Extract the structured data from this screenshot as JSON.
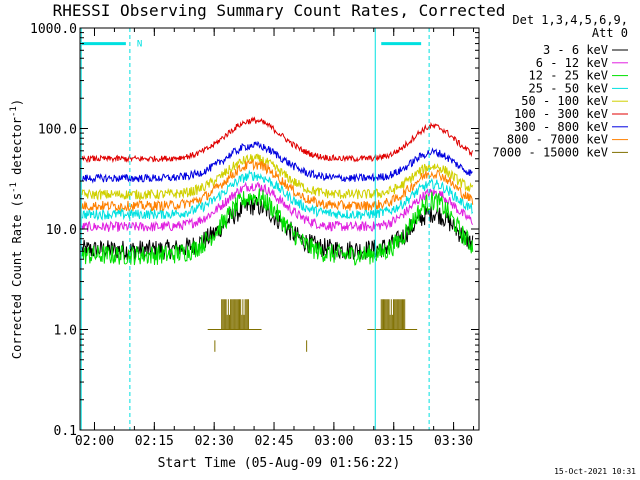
{
  "chart_data": {
    "type": "line",
    "title": "RHESSI Observing Summary Count Rates, Corrected",
    "xlabel": "Start Time (05-Aug-09 01:56:22)",
    "ylabel_main": "Corrected Count Rate (s",
    "ylabel_sup1": "-1",
    "ylabel_mid": " detector",
    "ylabel_sup2": "-1",
    "ylabel_end": ")",
    "y_scale": "log",
    "ylim": [
      0.1,
      1000
    ],
    "xlim_minutes": [
      0,
      100
    ],
    "x_ticks": [
      {
        "m": 3.63,
        "label": "02:00"
      },
      {
        "m": 18.63,
        "label": "02:15"
      },
      {
        "m": 33.63,
        "label": "02:30"
      },
      {
        "m": 48.63,
        "label": "02:45"
      },
      {
        "m": 63.63,
        "label": "03:00"
      },
      {
        "m": 78.63,
        "label": "03:15"
      },
      {
        "m": 93.63,
        "label": "03:30"
      }
    ],
    "y_ticks": [
      {
        "v": 1000,
        "label": "1000.0"
      },
      {
        "v": 100,
        "label": "100.0"
      },
      {
        "v": 10,
        "label": "10.0"
      },
      {
        "v": 1,
        "label": "1.0"
      },
      {
        "v": 0.1,
        "label": "0.1"
      }
    ],
    "legend_header": [
      "Det 1,3,4,5,6,9,",
      "Att 0"
    ],
    "footer_date": "15-Oct-2021 10:31",
    "night_marker": "N",
    "series": [
      {
        "name": "3 - 6 keV",
        "color": "#000000",
        "base": 6.2,
        "peak1": 17,
        "peak2": 14.5,
        "noise": 0.1
      },
      {
        "name": "6 - 12 keV",
        "color": "#e020e0",
        "base": 10.5,
        "peak1": 27,
        "peak2": 23,
        "noise": 0.05
      },
      {
        "name": "12 - 25 keV",
        "color": "#00e000",
        "base": 5.5,
        "peak1": 21,
        "peak2": 19,
        "noise": 0.1
      },
      {
        "name": "25 - 50 keV",
        "color": "#00e0e0",
        "base": 14,
        "peak1": 34,
        "peak2": 28,
        "noise": 0.05
      },
      {
        "name": "50 - 100 keV",
        "color": "#d0d000",
        "base": 22,
        "peak1": 50,
        "peak2": 42,
        "noise": 0.05
      },
      {
        "name": "100 - 300 keV",
        "color": "#e00000",
        "base": 50,
        "peak1": 120,
        "peak2": 105,
        "noise": 0.03
      },
      {
        "name": "300 - 800 keV",
        "color": "#0000e0",
        "base": 32,
        "peak1": 68,
        "peak2": 58,
        "noise": 0.04
      },
      {
        "name": "800 - 7000 keV",
        "color": "#ff8000",
        "base": 17,
        "peak1": 44,
        "peak2": 36,
        "noise": 0.05
      },
      {
        "name": "7000 - 15000 keV",
        "color": "#807000",
        "base": 1.0,
        "peak1": 1.0,
        "peak2": 1.0,
        "noise": 0
      }
    ],
    "attenuator_bursts": [
      {
        "start": 35.5,
        "end": 42.5,
        "top": 2.0,
        "bottom": 1.0
      },
      {
        "start": 75.5,
        "end": 81.5,
        "top": 2.0,
        "bottom": 1.0
      }
    ],
    "saa_bars": [
      {
        "start": 0.5,
        "end": 11.5,
        "value": 700
      },
      {
        "start": 75.5,
        "end": 85.5,
        "value": 700
      }
    ],
    "vertical_markers": [
      {
        "m": 0.3,
        "style": "solid"
      },
      {
        "m": 12.5,
        "style": "dashed"
      },
      {
        "m": 74.0,
        "style": "solid"
      },
      {
        "m": 87.5,
        "style": "dashed"
      }
    ]
  }
}
